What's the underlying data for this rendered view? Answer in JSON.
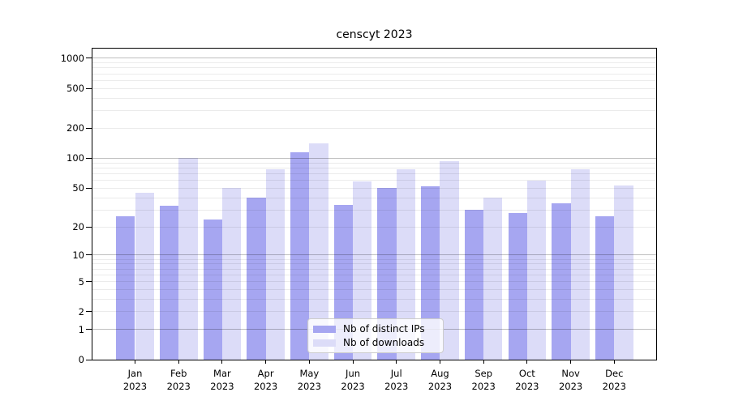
{
  "chart_data": {
    "type": "bar",
    "title": "censcyt 2023",
    "months": [
      "Jan",
      "Feb",
      "Mar",
      "Apr",
      "May",
      "Jun",
      "Jul",
      "Aug",
      "Sep",
      "Oct",
      "Nov",
      "Dec"
    ],
    "year": "2023",
    "series": [
      {
        "name": "Nb of distinct IPs",
        "color": "#a6a6f1",
        "values": [
          26,
          33,
          24,
          40,
          115,
          34,
          50,
          52,
          30,
          28,
          35,
          26
        ]
      },
      {
        "name": "Nb of downloads",
        "color": "#dcdcf8",
        "values": [
          45,
          100,
          50,
          78,
          140,
          58,
          78,
          93,
          40,
          60,
          78,
          53
        ]
      }
    ],
    "y_axis": {
      "scale": "log1p",
      "tick_values": [
        0,
        1,
        2,
        5,
        10,
        20,
        50,
        100,
        200,
        500,
        1000
      ],
      "top_value": 1285
    },
    "grid": {
      "major_lines": [
        1,
        10,
        100,
        1000
      ],
      "minor_lines": [
        2,
        3,
        4,
        5,
        6,
        7,
        8,
        9,
        20,
        30,
        40,
        50,
        60,
        70,
        80,
        90,
        200,
        300,
        400,
        500,
        600,
        700,
        800,
        900
      ]
    },
    "legend": {
      "position": "bottom-center"
    },
    "xlabel": "",
    "ylabel": ""
  },
  "colors": {
    "distinct_ips": "#a6a6f1",
    "downloads": "#dcdcf8",
    "spine": "#000000",
    "legend_border": "#cccccc",
    "background": "#ffffff"
  }
}
